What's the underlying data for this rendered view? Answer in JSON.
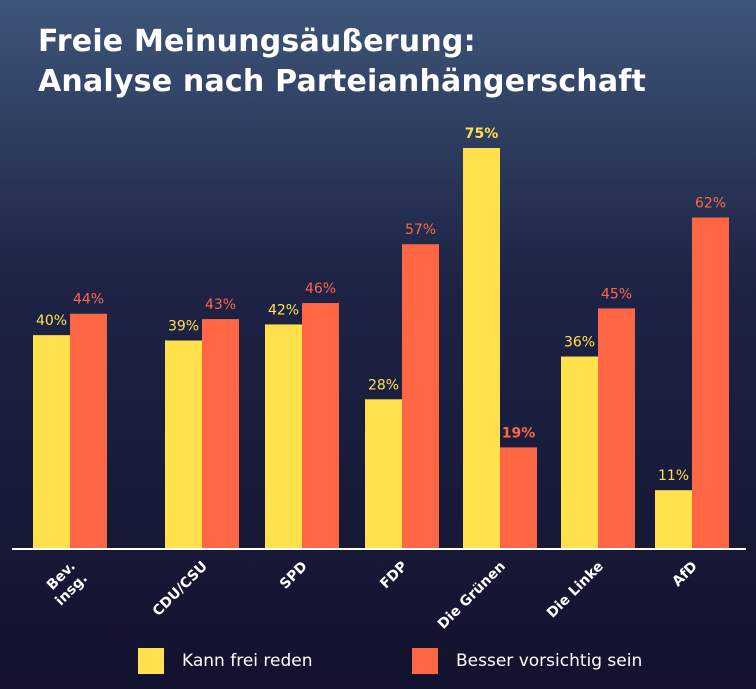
{
  "title_line1": "Freie Meinungsäußerung:",
  "title_line2": "Analyse nach Parteianhängerschaft",
  "colors": {
    "yellow": "#ffe14d",
    "red": "#ff6644",
    "axis": "#ffffff",
    "text": "#ffffff"
  },
  "chart_data": {
    "type": "bar",
    "categories": [
      [
        "Bev.",
        "insg."
      ],
      [
        "CDU/CSU"
      ],
      [
        "SPD"
      ],
      [
        "FDP"
      ],
      [
        "Die Grünen"
      ],
      [
        "Die Linke"
      ],
      [
        "AfD"
      ]
    ],
    "series": [
      {
        "name": "Kann frei reden",
        "color": "#ffe14d",
        "values": [
          40,
          39,
          42,
          28,
          75,
          36,
          11
        ],
        "labels": [
          "40%",
          "39%",
          "42%",
          "28%",
          "75%",
          "36%",
          "11%"
        ]
      },
      {
        "name": "Besser vorsichtig sein",
        "color": "#ff6644",
        "values": [
          44,
          43,
          46,
          57,
          19,
          45,
          62
        ],
        "labels": [
          "44%",
          "43%",
          "46%",
          "57%",
          "19%",
          "45%",
          "62%"
        ]
      }
    ],
    "bold_labels": [
      "75%",
      "19%"
    ],
    "ylim": [
      0,
      75
    ],
    "legend_position": "bottom",
    "grid": false
  },
  "legend": {
    "item1": "Kann frei reden",
    "item2": "Besser vorsichtig sein"
  }
}
